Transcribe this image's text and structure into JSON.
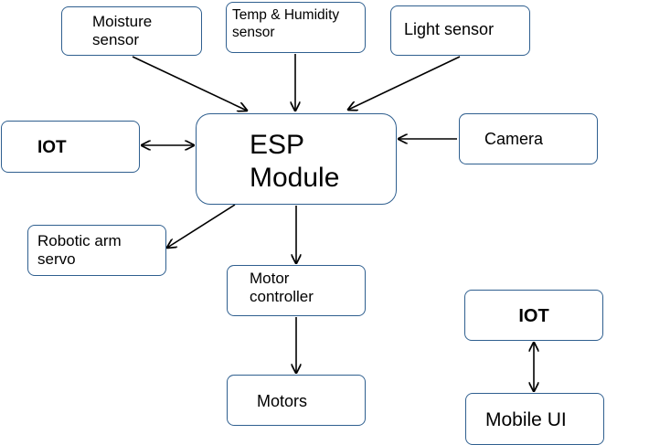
{
  "nodes": {
    "moisture": {
      "line1": "Moisture",
      "line2": "sensor"
    },
    "temp_humidity": {
      "line1": "Temp & Humidity",
      "line2": "sensor"
    },
    "light": {
      "label": "Light sensor"
    },
    "iot_left": {
      "label": "IOT"
    },
    "esp": {
      "line1": "ESP",
      "line2": "Module"
    },
    "camera": {
      "label": "Camera"
    },
    "servo": {
      "line1": "Robotic arm",
      "line2": "servo"
    },
    "motor_controller": {
      "line1": "Motor",
      "line2": "controller"
    },
    "motors": {
      "label": "Motors"
    },
    "iot_right": {
      "label": "IOT"
    },
    "mobile_ui": {
      "label": "Mobile UI"
    }
  },
  "colors": {
    "box_border": "#2f5f8f",
    "arrow": "#000000",
    "background": "#ffffff"
  }
}
